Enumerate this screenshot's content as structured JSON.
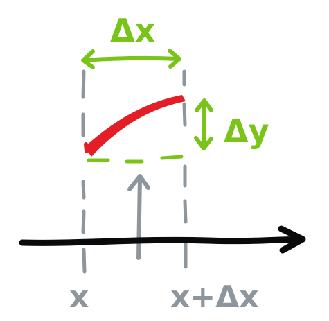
{
  "labels": {
    "delta_x": "Δx",
    "delta_y": "Δy",
    "x_left": "x",
    "x_right": "x+Δx"
  },
  "colors": {
    "background": "#ffffff",
    "green": "#7ac41a",
    "red": "#e41e26",
    "gray": "#8c969c",
    "black": "#0a0a0a"
  }
}
